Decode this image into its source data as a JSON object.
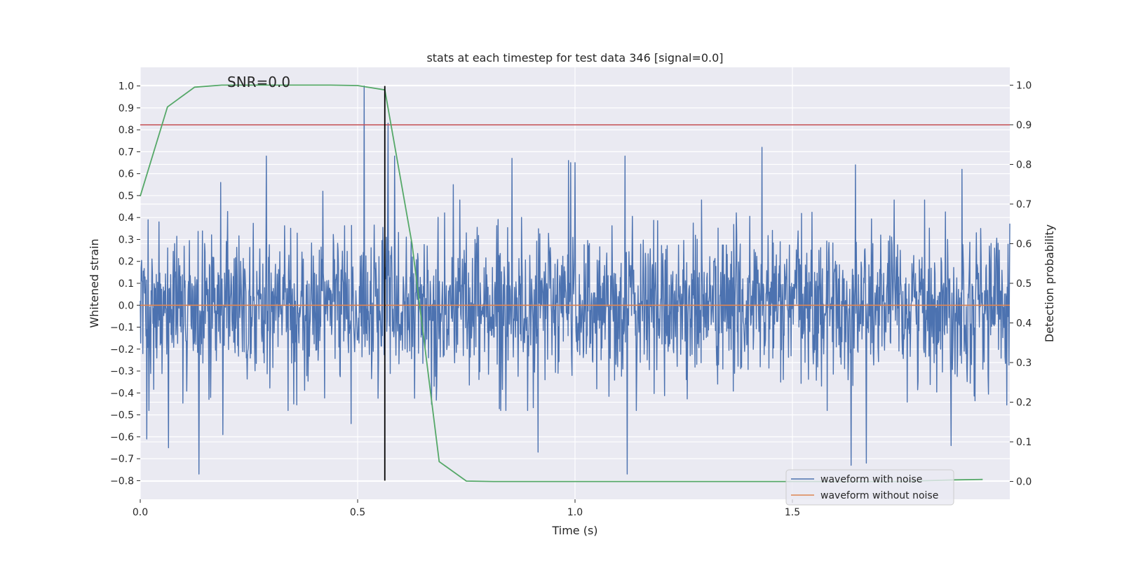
{
  "chart_data": {
    "type": "line",
    "title": "stats at each timestep for test data 346 [signal=0.0]",
    "xlabel": "Time (s)",
    "ylabel": "Whitened strain",
    "y2label": "Detection probability",
    "annotation": "SNR=0.0",
    "xlim": [
      0.0,
      2.0
    ],
    "ylim": [
      -0.885,
      1.085
    ],
    "y2lim": [
      -0.045,
      1.045
    ],
    "x_ticks": [
      "0.0",
      "0.5",
      "1.0",
      "1.5"
    ],
    "x_tick_values": [
      0.0,
      0.5,
      1.0,
      1.5
    ],
    "y_ticks": [
      "−0.8",
      "−0.7",
      "−0.6",
      "−0.5",
      "−0.4",
      "−0.3",
      "−0.2",
      "−0.1",
      "0.0",
      "0.1",
      "0.2",
      "0.3",
      "0.4",
      "0.5",
      "0.6",
      "0.7",
      "0.8",
      "0.9",
      "1.0"
    ],
    "y_tick_values": [
      -0.8,
      -0.7,
      -0.6,
      -0.5,
      -0.4,
      -0.3,
      -0.2,
      -0.1,
      0.0,
      0.1,
      0.2,
      0.3,
      0.4,
      0.5,
      0.6,
      0.7,
      0.8,
      0.9,
      1.0
    ],
    "y2_ticks": [
      "0.0",
      "0.1",
      "0.2",
      "0.3",
      "0.4",
      "0.5",
      "0.6",
      "0.7",
      "0.8",
      "0.9",
      "1.0"
    ],
    "y2_tick_values": [
      0.0,
      0.1,
      0.2,
      0.3,
      0.4,
      0.5,
      0.6,
      0.7,
      0.8,
      0.9,
      1.0
    ],
    "grid": true,
    "legend_position": "lower-right",
    "series": [
      {
        "name": "waveform with noise",
        "color": "#4c72b0",
        "axis": "left",
        "noise": {
          "start": 0.0,
          "end": 2.0,
          "step": 0.001,
          "sigma": 0.17,
          "peaks": [
            {
              "x": 0.015,
              "y": -0.61
            },
            {
              "x": 0.02,
              "y": -0.48
            },
            {
              "x": 0.065,
              "y": -0.65
            },
            {
              "x": 0.135,
              "y": -0.77
            },
            {
              "x": 0.185,
              "y": 0.56
            },
            {
              "x": 0.19,
              "y": -0.59
            },
            {
              "x": 0.29,
              "y": 0.68
            },
            {
              "x": 0.42,
              "y": 0.52
            },
            {
              "x": 0.485,
              "y": -0.54
            },
            {
              "x": 0.515,
              "y": 1.0
            },
            {
              "x": 0.57,
              "y": 0.83
            },
            {
              "x": 0.585,
              "y": 0.68
            },
            {
              "x": 0.63,
              "y": -0.11
            },
            {
              "x": 0.72,
              "y": 0.55
            },
            {
              "x": 0.855,
              "y": 0.67
            },
            {
              "x": 0.915,
              "y": -0.67
            },
            {
              "x": 0.985,
              "y": 0.66
            },
            {
              "x": 0.99,
              "y": 0.65
            },
            {
              "x": 1.0,
              "y": 0.65
            },
            {
              "x": 1.115,
              "y": 0.68
            },
            {
              "x": 1.12,
              "y": -0.77
            },
            {
              "x": 1.43,
              "y": 0.72
            },
            {
              "x": 1.635,
              "y": -0.73
            },
            {
              "x": 1.645,
              "y": 0.64
            },
            {
              "x": 1.67,
              "y": -0.72
            },
            {
              "x": 1.865,
              "y": -0.64
            },
            {
              "x": 1.89,
              "y": 0.62
            }
          ]
        }
      },
      {
        "name": "waveform without noise",
        "color": "#dd8452",
        "axis": "left",
        "x": [
          0.0,
          2.0
        ],
        "y": [
          0.0,
          0.0
        ]
      },
      {
        "name": "",
        "color": "#55a868",
        "axis": "right",
        "x": [
          0.0,
          0.0625,
          0.125,
          0.1875,
          0.25,
          0.3125,
          0.375,
          0.4375,
          0.5,
          0.5625,
          0.625,
          0.6875,
          0.75,
          0.8125,
          0.875,
          0.9375,
          1.0,
          1.0625,
          1.125,
          1.1875,
          1.25,
          1.3125,
          1.375,
          1.4375,
          1.5,
          1.5625,
          1.625,
          1.6875,
          1.75,
          1.8125,
          1.875,
          1.9375
        ],
        "y": [
          0.72,
          0.945,
          0.995,
          1.0,
          1.0,
          1.0,
          1.0,
          1.0,
          0.999,
          0.988,
          0.6,
          0.05,
          0.001,
          0.0,
          0.0,
          0.0,
          0.0,
          0.0,
          0.0,
          0.0,
          0.0,
          0.0,
          0.0,
          0.0,
          0.0,
          0.0,
          0.0,
          0.0,
          0.0,
          0.002,
          0.004,
          0.005
        ]
      }
    ],
    "hlines": [
      {
        "y": 0.9,
        "axis": "right",
        "color": "#c44e52"
      }
    ],
    "vlines": [
      {
        "x": 0.5625,
        "color": "#000000",
        "y_range": [
          -0.8,
          1.0
        ]
      }
    ]
  }
}
